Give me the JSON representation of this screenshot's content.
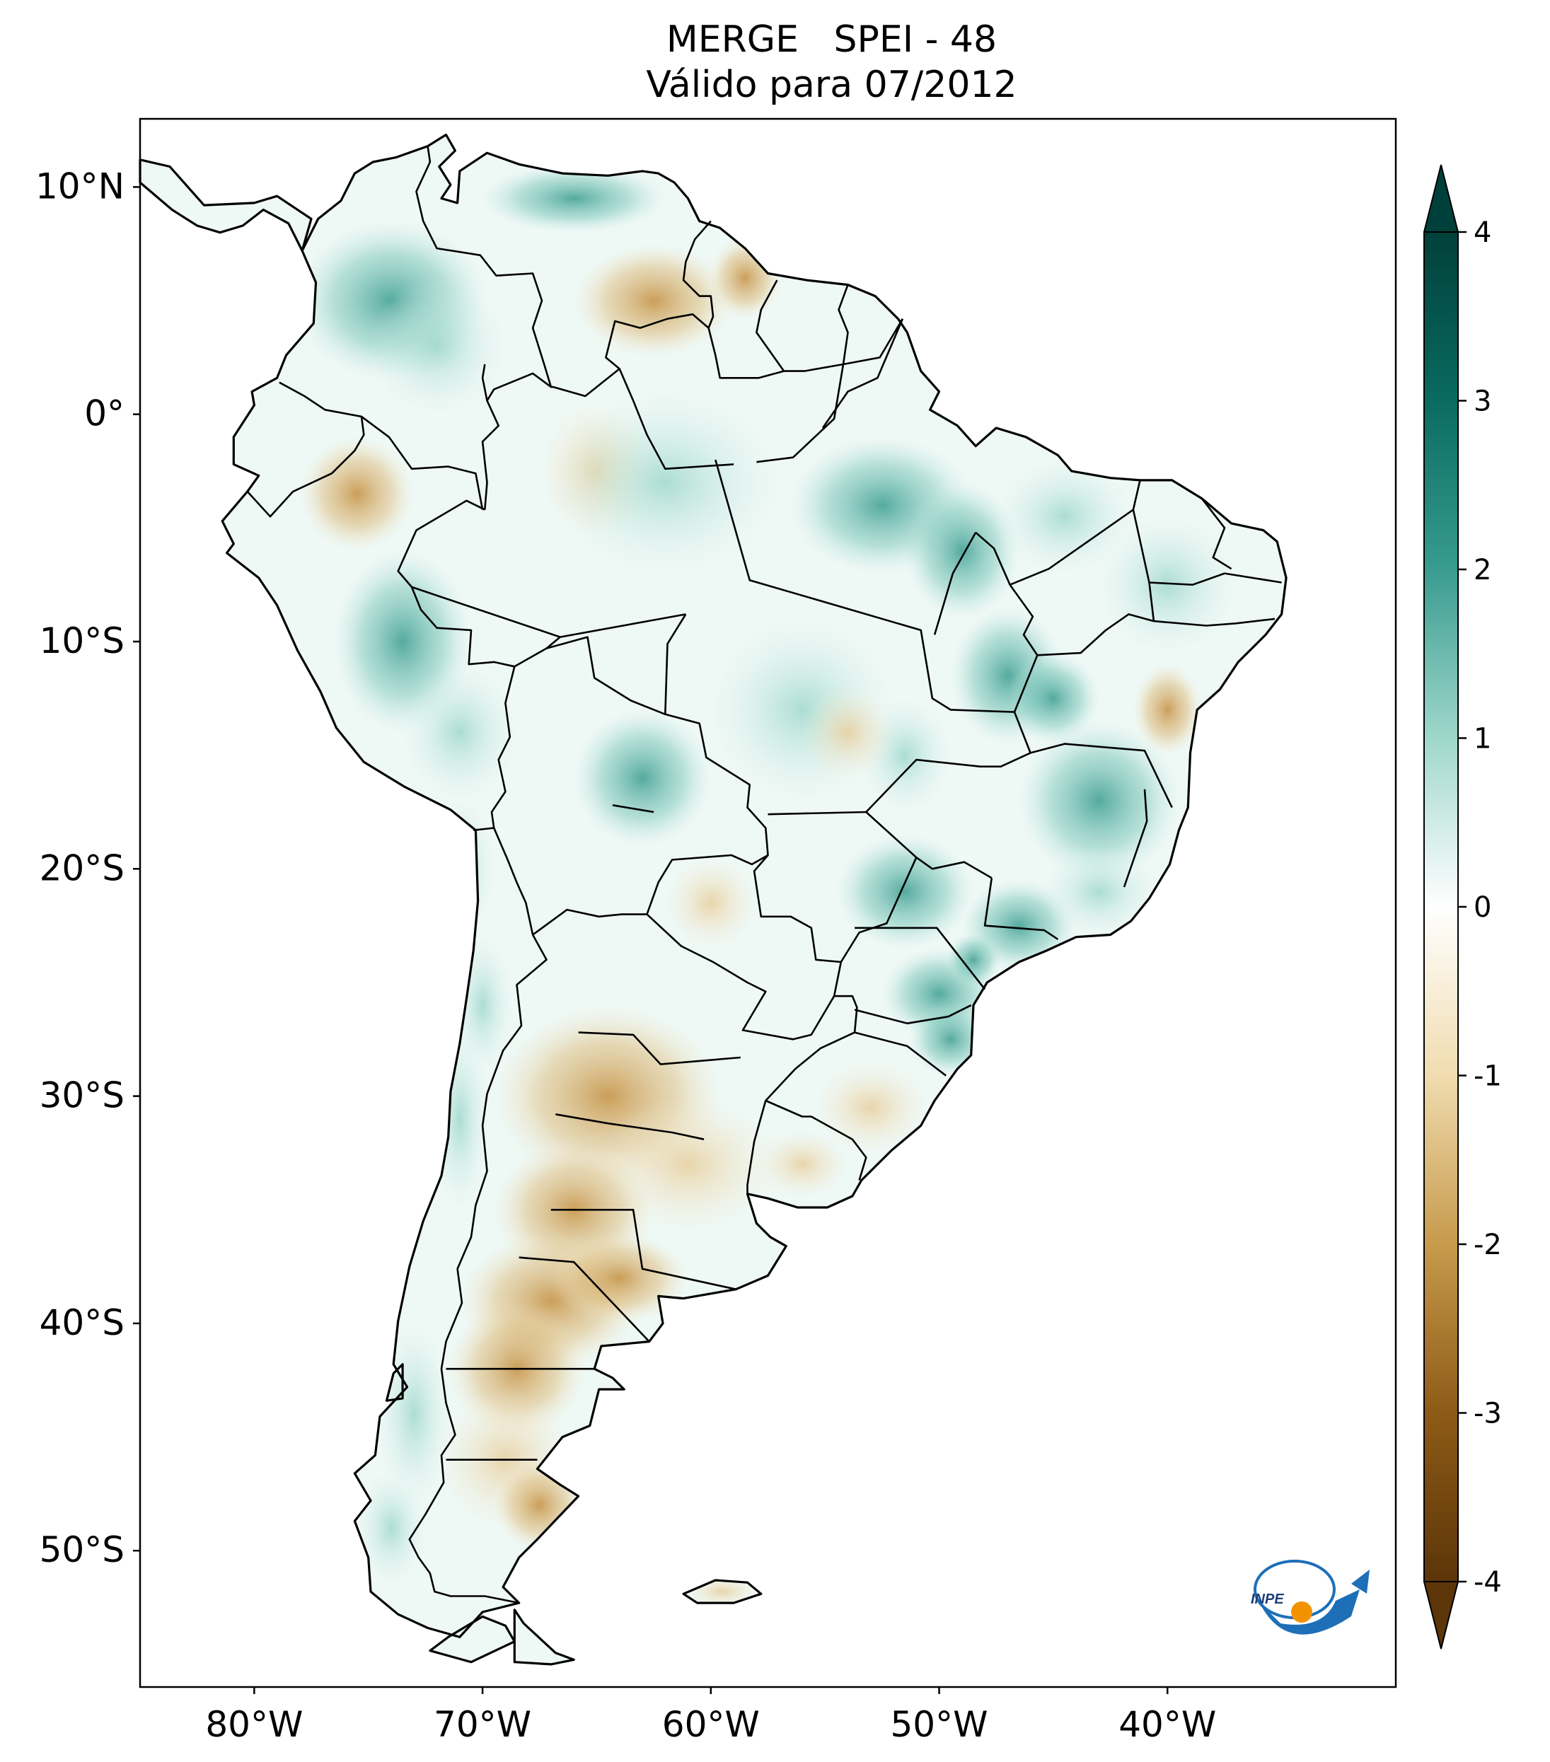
{
  "title": {
    "line1": "MERGE   SPEI - 48",
    "line2": "Válido para 07/2012"
  },
  "map": {
    "region": "South America",
    "lon_range": [
      -85,
      -30
    ],
    "lat_range": [
      -56,
      13
    ],
    "lat_ticks": [
      {
        "value": 10,
        "label": "10°N"
      },
      {
        "value": 0,
        "label": "0°"
      },
      {
        "value": -10,
        "label": "10°S"
      },
      {
        "value": -20,
        "label": "20°S"
      },
      {
        "value": -30,
        "label": "30°S"
      },
      {
        "value": -40,
        "label": "40°S"
      },
      {
        "value": -50,
        "label": "50°S"
      }
    ],
    "lon_ticks": [
      {
        "value": -80,
        "label": "80°W"
      },
      {
        "value": -70,
        "label": "70°W"
      },
      {
        "value": -60,
        "label": "60°W"
      },
      {
        "value": -50,
        "label": "50°W"
      },
      {
        "value": -40,
        "label": "40°W"
      }
    ]
  },
  "colorbar": {
    "min": -4,
    "max": 4,
    "ticks": [
      {
        "value": 4,
        "label": "4"
      },
      {
        "value": 3,
        "label": "3"
      },
      {
        "value": 2,
        "label": "2"
      },
      {
        "value": 1,
        "label": "1"
      },
      {
        "value": 0,
        "label": "0"
      },
      {
        "value": -1,
        "label": "-1"
      },
      {
        "value": -2,
        "label": "-2"
      },
      {
        "value": -3,
        "label": "-3"
      },
      {
        "value": -4,
        "label": "-4"
      }
    ],
    "colors": {
      "wet_max": "#00403a",
      "wet_mid": "#3a9c8f",
      "wet_low": "#bde6de",
      "neutral": "#ffffff",
      "dry_low": "#f3e4c2",
      "dry_mid": "#c79a4c",
      "dry_max": "#5c3508"
    }
  },
  "logo": {
    "text": "INPE",
    "colors": {
      "blue": "#1d6fb8",
      "orange": "#f39200"
    }
  }
}
